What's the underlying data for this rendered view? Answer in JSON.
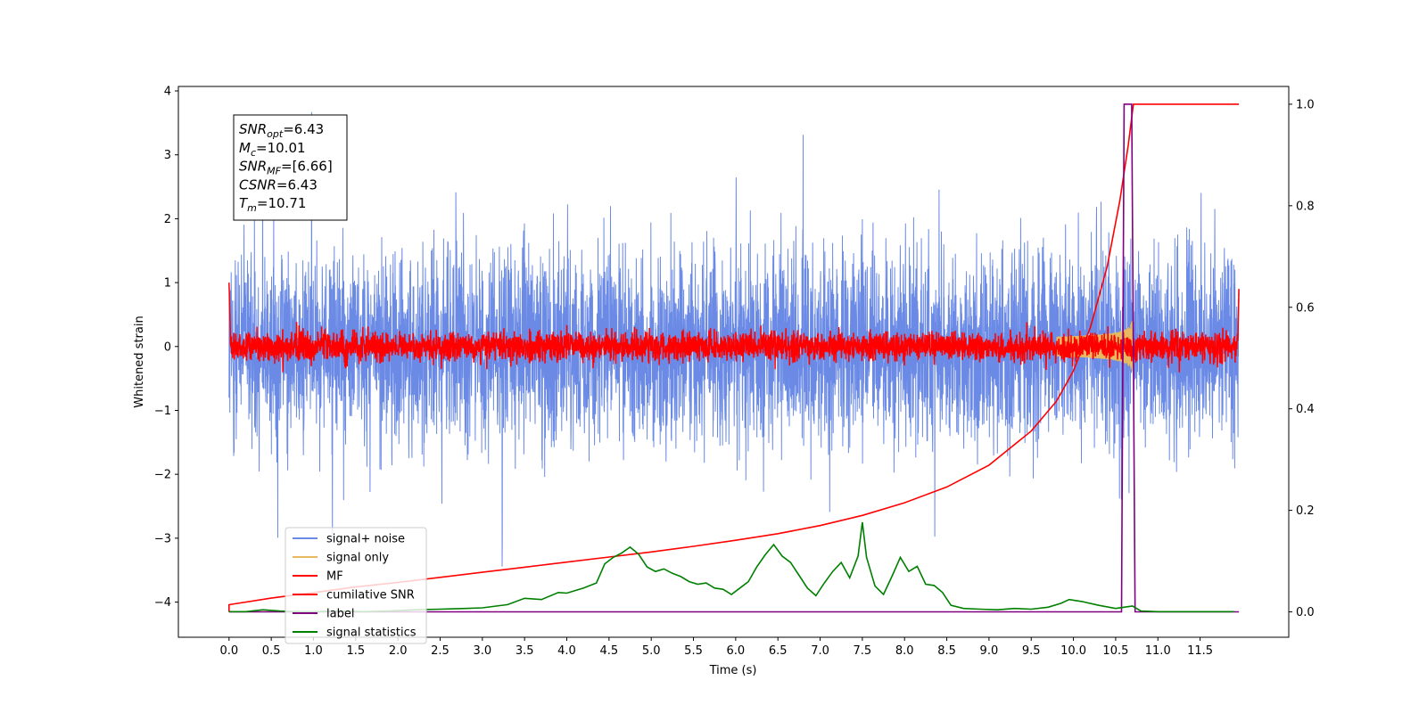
{
  "chart_data": {
    "type": "line",
    "xlabel": "Time (s)",
    "ylabel": "Whitened strain",
    "xlim": [
      -0.6,
      12.55
    ],
    "ylim_left": [
      -4.55,
      4.07
    ],
    "ylim_right": [
      -0.05,
      1.035
    ],
    "x_ticks": [
      "0.0",
      "0.5",
      "1.0",
      "1.5",
      "2.0",
      "2.5",
      "3.0",
      "3.5",
      "4.0",
      "4.5",
      "5.0",
      "5.5",
      "6.0",
      "6.5",
      "7.0",
      "7.5",
      "8.0",
      "8.5",
      "9.0",
      "9.5",
      "10.0",
      "10.5",
      "11.0",
      "11.5"
    ],
    "y_ticks_left": [
      "−4",
      "−3",
      "−2",
      "−1",
      "0",
      "1",
      "2",
      "3",
      "4"
    ],
    "y_ticks_right": [
      "0.0",
      "0.2",
      "0.4",
      "0.6",
      "0.8",
      "1.0"
    ],
    "legend_position": "lower-left",
    "annotation": {
      "lines": [
        {
          "sym": "SNR",
          "sub": "opt",
          "val": "=6.43"
        },
        {
          "sym": "M",
          "sub": "c",
          "val": "=10.01"
        },
        {
          "sym": "SNR",
          "sub": "MF",
          "val": "=[6.66]"
        },
        {
          "sym": "CSNR",
          "sub": "",
          "val": "=6.43"
        },
        {
          "sym": "T",
          "sub": "m",
          "val": "=10.71"
        }
      ]
    },
    "series": [
      {
        "name": "signal+ noise",
        "color": "#6a8ae6",
        "axis": "left",
        "kind": "noise",
        "approx_range": [
          -4.1,
          3.67
        ]
      },
      {
        "name": "signal only",
        "color": "#e8b960",
        "axis": "left",
        "kind": "chirp",
        "t_start": 9.8,
        "t_merger": 10.71,
        "peak_amplitude": 0.4
      },
      {
        "name": "MF",
        "color": "#ff0000",
        "axis": "left",
        "kind": "matched-filter",
        "start_value": 1.0,
        "end_value": 0.9
      },
      {
        "name": "cumilative SNR",
        "color": "#ff0000",
        "axis": "right",
        "x": [
          0.0,
          0.5,
          1.0,
          1.5,
          2.0,
          2.5,
          3.0,
          3.5,
          4.0,
          4.5,
          5.0,
          5.5,
          6.0,
          6.5,
          7.0,
          7.5,
          8.0,
          8.5,
          9.0,
          9.5,
          9.8,
          10.0,
          10.2,
          10.4,
          10.55,
          10.65,
          10.71,
          11.0,
          11.5,
          11.96
        ],
        "y": [
          0.014,
          0.027,
          0.038,
          0.049,
          0.058,
          0.068,
          0.078,
          0.088,
          0.098,
          0.108,
          0.118,
          0.129,
          0.141,
          0.154,
          0.17,
          0.19,
          0.215,
          0.246,
          0.289,
          0.356,
          0.415,
          0.475,
          0.56,
          0.68,
          0.81,
          0.92,
          1.0,
          1.0,
          1.0,
          1.0
        ]
      },
      {
        "name": "label",
        "color": "#800080",
        "axis": "right",
        "x": [
          0.0,
          10.57,
          10.6,
          10.69,
          10.73,
          11.96
        ],
        "y": [
          0.0,
          0.0,
          1.0,
          1.0,
          0.0,
          0.0
        ]
      },
      {
        "name": "signal statistics",
        "color": "#008000",
        "axis": "left",
        "x": [
          0.0,
          0.2,
          0.4,
          0.6,
          0.8,
          1.0,
          1.3,
          1.6,
          1.9,
          2.2,
          2.5,
          2.8,
          3.0,
          3.3,
          3.5,
          3.7,
          3.9,
          4.0,
          4.2,
          4.35,
          4.45,
          4.55,
          4.65,
          4.75,
          4.85,
          4.95,
          5.05,
          5.15,
          5.25,
          5.35,
          5.45,
          5.55,
          5.65,
          5.75,
          5.85,
          5.95,
          6.05,
          6.15,
          6.25,
          6.35,
          6.45,
          6.55,
          6.65,
          6.75,
          6.85,
          6.95,
          7.05,
          7.15,
          7.25,
          7.35,
          7.45,
          7.5,
          7.55,
          7.65,
          7.75,
          7.85,
          7.95,
          8.05,
          8.15,
          8.25,
          8.35,
          8.45,
          8.55,
          8.7,
          8.9,
          9.1,
          9.3,
          9.5,
          9.7,
          9.85,
          9.95,
          10.1,
          10.3,
          10.5,
          10.6,
          10.7,
          10.8,
          11.0,
          11.5,
          11.9
        ],
        "y": [
          -4.15,
          -4.15,
          -4.12,
          -4.14,
          -4.15,
          -4.15,
          -4.14,
          -4.15,
          -4.14,
          -4.12,
          -4.11,
          -4.1,
          -4.09,
          -4.04,
          -3.94,
          -3.96,
          -3.85,
          -3.86,
          -3.78,
          -3.7,
          -3.4,
          -3.3,
          -3.23,
          -3.14,
          -3.25,
          -3.45,
          -3.52,
          -3.48,
          -3.55,
          -3.6,
          -3.68,
          -3.72,
          -3.7,
          -3.78,
          -3.8,
          -3.88,
          -3.78,
          -3.68,
          -3.45,
          -3.26,
          -3.1,
          -3.28,
          -3.38,
          -3.58,
          -3.78,
          -3.9,
          -3.7,
          -3.52,
          -3.38,
          -3.62,
          -3.28,
          -2.75,
          -3.3,
          -3.75,
          -3.88,
          -3.6,
          -3.3,
          -3.52,
          -3.44,
          -3.72,
          -3.74,
          -3.85,
          -4.05,
          -4.1,
          -4.11,
          -4.12,
          -4.1,
          -4.11,
          -4.08,
          -4.02,
          -3.96,
          -3.99,
          -4.05,
          -4.1,
          -4.08,
          -4.06,
          -4.14,
          -4.15,
          -4.15,
          -4.15
        ]
      }
    ]
  }
}
